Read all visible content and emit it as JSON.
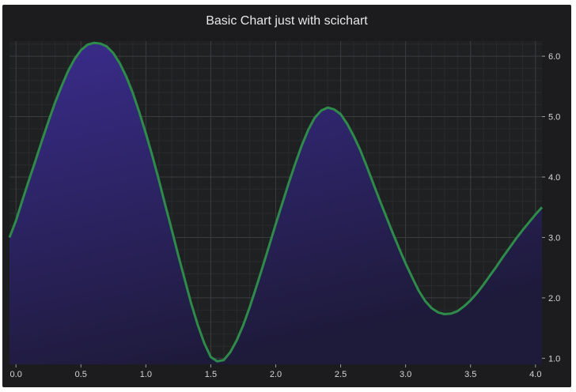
{
  "chart_data": {
    "type": "area",
    "title": "Basic Chart just with scichart",
    "xlabel": "",
    "ylabel": "",
    "xlim": [
      -0.05,
      4.05
    ],
    "ylim": [
      0.9,
      6.25
    ],
    "x_ticks": [
      "0.0",
      "0.5",
      "1.0",
      "1.5",
      "2.0",
      "2.5",
      "3.0",
      "3.5",
      "4.0"
    ],
    "y_ticks": [
      "1.0",
      "2.0",
      "3.0",
      "4.0",
      "5.0",
      "6.0"
    ],
    "grid": true,
    "legend": "none",
    "line_color": "#2e8b4a",
    "fill_top_color": "#3a2c8c",
    "fill_bottom_color": "#1e1a3a",
    "series": [
      {
        "x": [
          -0.05,
          0.0,
          0.05,
          0.1,
          0.15,
          0.2,
          0.25,
          0.3,
          0.35,
          0.4,
          0.45,
          0.5,
          0.55,
          0.6,
          0.65,
          0.7,
          0.75,
          0.8,
          0.85,
          0.9,
          0.95,
          1.0,
          1.05,
          1.1,
          1.15,
          1.2,
          1.25,
          1.3,
          1.35,
          1.4,
          1.45,
          1.5,
          1.55,
          1.6,
          1.65,
          1.7,
          1.75,
          1.8,
          1.85,
          1.9,
          1.95,
          2.0,
          2.05,
          2.1,
          2.15,
          2.2,
          2.25,
          2.3,
          2.35,
          2.4,
          2.45,
          2.5,
          2.55,
          2.6,
          2.65,
          2.7,
          2.75,
          2.8,
          2.85,
          2.9,
          2.95,
          3.0,
          3.05,
          3.1,
          3.15,
          3.2,
          3.25,
          3.3,
          3.35,
          3.4,
          3.45,
          3.5,
          3.55,
          3.6,
          3.65,
          3.7,
          3.75,
          3.8,
          3.85,
          3.9,
          3.95,
          4.0,
          4.05
        ],
        "values": [
          3.0,
          3.28,
          3.62,
          3.95,
          4.27,
          4.6,
          4.92,
          5.23,
          5.5,
          5.75,
          5.95,
          6.1,
          6.19,
          6.22,
          6.21,
          6.16,
          6.05,
          5.88,
          5.66,
          5.39,
          5.07,
          4.72,
          4.35,
          3.95,
          3.53,
          3.12,
          2.7,
          2.3,
          1.9,
          1.55,
          1.25,
          1.02,
          0.95,
          0.97,
          1.1,
          1.3,
          1.55,
          1.85,
          2.18,
          2.52,
          2.87,
          3.22,
          3.56,
          3.9,
          4.22,
          4.52,
          4.78,
          4.98,
          5.1,
          5.15,
          5.12,
          5.04,
          4.88,
          4.68,
          4.45,
          4.18,
          3.9,
          3.62,
          3.35,
          3.08,
          2.82,
          2.57,
          2.34,
          2.12,
          1.95,
          1.83,
          1.76,
          1.73,
          1.74,
          1.78,
          1.86,
          1.96,
          2.08,
          2.22,
          2.37,
          2.52,
          2.68,
          2.83,
          2.98,
          3.12,
          3.25,
          3.38,
          3.5
        ]
      }
    ]
  }
}
